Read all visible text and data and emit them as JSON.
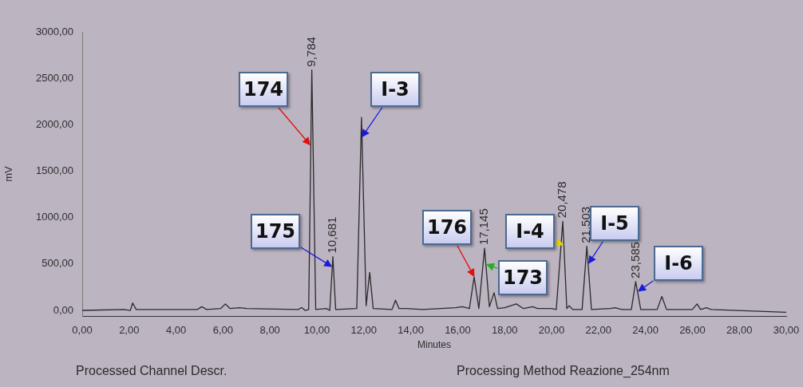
{
  "chart_data": {
    "type": "line",
    "xlabel": "Minutes",
    "ylabel": "mV",
    "color": "#2a2a2a",
    "marker": "none",
    "grid": false,
    "legend": false,
    "x": [
      0,
      1.8,
      2.05,
      2.15,
      2.3,
      4.9,
      5.1,
      5.3,
      5.9,
      6.1,
      6.3,
      6.7,
      7.0,
      9.2,
      9.35,
      9.5,
      9.65,
      9.784,
      9.95,
      10.4,
      10.55,
      10.681,
      10.8,
      11.7,
      11.9,
      12.1,
      12.25,
      12.4,
      13.2,
      13.35,
      13.5,
      13.8,
      14.5,
      15.9,
      16.2,
      16.5,
      16.7,
      16.9,
      17.145,
      17.35,
      17.55,
      17.7,
      18.0,
      18.5,
      18.8,
      19.2,
      19.4,
      20.0,
      20.2,
      20.478,
      20.65,
      20.75,
      20.9,
      21.3,
      21.503,
      21.7,
      22.5,
      22.7,
      23.0,
      23.4,
      23.585,
      23.8,
      24.5,
      24.7,
      24.9,
      26.0,
      26.2,
      26.35,
      26.6,
      26.8,
      30
    ],
    "values": [
      0,
      10,
      0,
      80,
      10,
      10,
      40,
      10,
      20,
      70,
      20,
      30,
      20,
      10,
      30,
      0,
      10,
      2590,
      10,
      20,
      0,
      580,
      10,
      20,
      2080,
      50,
      410,
      20,
      10,
      110,
      20,
      20,
      10,
      30,
      40,
      20,
      360,
      20,
      670,
      40,
      190,
      20,
      30,
      70,
      20,
      40,
      20,
      20,
      10,
      960,
      20,
      50,
      10,
      10,
      690,
      10,
      20,
      30,
      10,
      10,
      310,
      10,
      10,
      150,
      10,
      10,
      70,
      10,
      30,
      10,
      -20
    ],
    "xlim": [
      0,
      30
    ],
    "xticks": [
      {
        "value": 0,
        "label": "0,00"
      },
      {
        "value": 2,
        "label": "2,00"
      },
      {
        "value": 4,
        "label": "4,00"
      },
      {
        "value": 6,
        "label": "6,00"
      },
      {
        "value": 8,
        "label": "8,00"
      },
      {
        "value": 10,
        "label": "10,00"
      },
      {
        "value": 12,
        "label": "12,00"
      },
      {
        "value": 14,
        "label": "14,00"
      },
      {
        "value": 16,
        "label": "16,00"
      },
      {
        "value": 18,
        "label": "18,00"
      },
      {
        "value": 20,
        "label": "20,00"
      },
      {
        "value": 22,
        "label": "22,00"
      },
      {
        "value": 24,
        "label": "24,00"
      },
      {
        "value": 26,
        "label": "26,00"
      },
      {
        "value": 28,
        "label": "28,00"
      },
      {
        "value": 30,
        "label": "30,00"
      }
    ],
    "ylim": [
      -60,
      3000
    ],
    "yticks": [
      {
        "value": 0,
        "label": "0,00"
      },
      {
        "value": 500,
        "label": "500,00"
      },
      {
        "value": 1000,
        "label": "1000,00"
      },
      {
        "value": 1500,
        "label": "1500,00"
      },
      {
        "value": 2000,
        "label": "2000,00"
      },
      {
        "value": 2500,
        "label": "2500,00"
      },
      {
        "value": 3000,
        "label": "3000,00"
      }
    ],
    "annotations": [
      {
        "text": "9,784",
        "x": 9.784,
        "y": 2590
      },
      {
        "text": "10,681",
        "x": 10.681,
        "y": 580
      },
      {
        "text": "17,145",
        "x": 17.145,
        "y": 670
      },
      {
        "text": "20,478",
        "x": 20.478,
        "y": 960
      },
      {
        "text": "21,503",
        "x": 21.503,
        "y": 690
      },
      {
        "text": "23,585",
        "x": 23.585,
        "y": 310
      },
      {
        "text": "174",
        "x": 9.742,
        "y": 1778
      },
      {
        "text": "I-3",
        "x": 11.921,
        "y": 1863
      },
      {
        "text": "175",
        "x": 10.656,
        "y": 470
      },
      {
        "text": "176",
        "x": 16.7,
        "y": 360
      },
      {
        "text": "173",
        "x": 17.2,
        "y": 500
      },
      {
        "text": "I-4",
        "x": 20.526,
        "y": 700
      },
      {
        "text": "I-5",
        "x": 21.558,
        "y": 500
      },
      {
        "text": "I-6",
        "x": 23.664,
        "y": 200
      },
      "Processed Channel Descr.",
      "Processing Method Reazione_254nm"
    ]
  }
}
